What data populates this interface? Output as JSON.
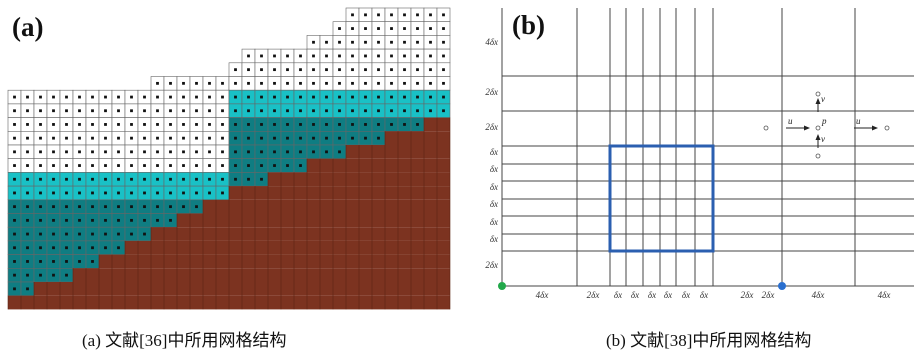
{
  "panel_a": {
    "label": "(a)",
    "caption": "(a)  文献[36]中所用网格结构",
    "colors": {
      "cell_white": "#ffffff",
      "cell_cyan": "#19c1c6",
      "cell_teal": "#0f7d82",
      "cell_brown": "#7c3320",
      "grid": "#666666",
      "dot": "#111111"
    }
  },
  "panel_b": {
    "label": "(b)",
    "caption": "(b)  文献[38]中所用网格结构",
    "y_labels": [
      "4δx",
      "2δx",
      "2δx",
      "δx",
      "δx",
      "δx",
      "δx",
      "δx",
      "δx",
      "2δx"
    ],
    "x_labels": [
      "4δx",
      "2δx",
      "δx",
      "δx",
      "δx",
      "δx",
      "δx",
      "δx",
      "2δx",
      "2δx",
      "4δx",
      "4δx"
    ],
    "cell_labels": {
      "u_left": "u",
      "u_right": "u",
      "p": "p",
      "v_top": "v",
      "v_bottom": "v"
    },
    "colors": {
      "grid": "#444444",
      "box": "#2b5fb0",
      "dot_green": "#22a84a",
      "dot_blue": "#2a6fcf"
    }
  }
}
